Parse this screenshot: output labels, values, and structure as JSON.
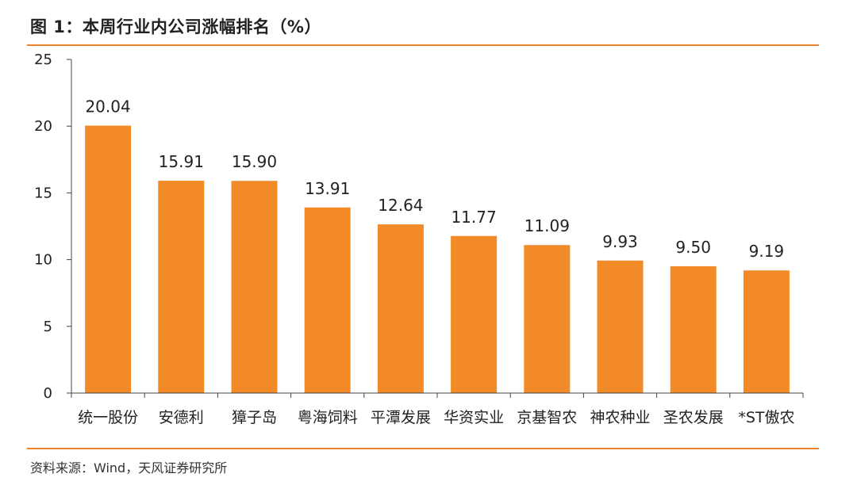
{
  "figure": {
    "title": "图 1：本周行业内公司涨幅排名（%）",
    "source": "资料来源：Wind，天风证券研究所"
  },
  "chart_data": {
    "type": "bar",
    "categories": [
      "统一股份",
      "安德利",
      "獐子岛",
      "粤海饲料",
      "平潭发展",
      "华资实业",
      "京基智农",
      "神农种业",
      "圣农发展",
      "*ST傲农"
    ],
    "values": [
      20.04,
      15.91,
      15.9,
      13.91,
      12.64,
      11.77,
      11.09,
      9.93,
      9.5,
      9.19
    ],
    "value_labels": [
      "20.04",
      "15.91",
      "15.90",
      "13.91",
      "12.64",
      "11.77",
      "11.09",
      "9.93",
      "9.50",
      "9.19"
    ],
    "ylim": [
      0,
      25
    ],
    "yticks": [
      0,
      5,
      10,
      15,
      20,
      25
    ],
    "grid": false,
    "bar_color": "#F28A27"
  }
}
